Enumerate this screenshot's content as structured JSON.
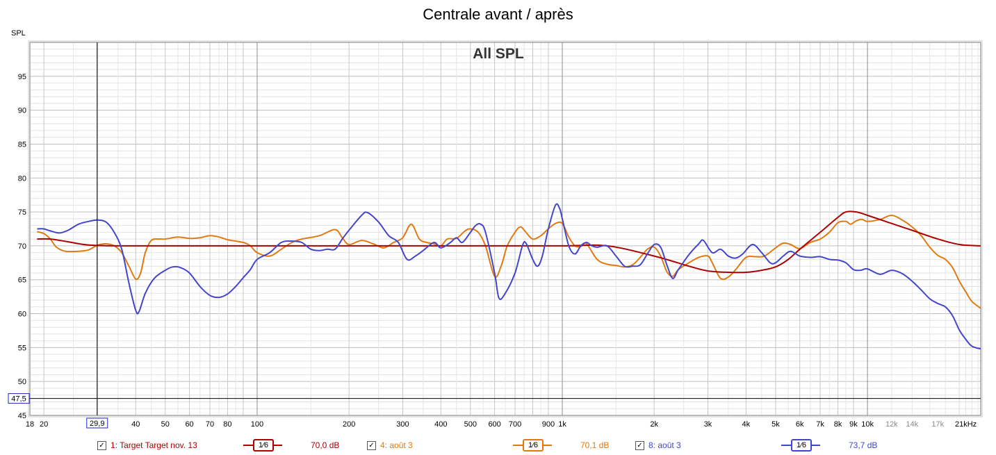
{
  "chart_data": {
    "type": "line",
    "title": "Centrale avant / après",
    "inner_label": "All SPL",
    "ylabel": "SPL",
    "xlabel": "",
    "x_scale": "log",
    "xlim": [
      18,
      23500
    ],
    "ylim": [
      45,
      100
    ],
    "grid": true,
    "y_ticks": [
      45,
      50,
      55,
      60,
      65,
      70,
      75,
      80,
      85,
      90,
      95
    ],
    "x_ticks": [
      {
        "value": 18,
        "label": "18",
        "light": false
      },
      {
        "value": 20,
        "label": "20",
        "light": false
      },
      {
        "value": 40,
        "label": "40",
        "light": false
      },
      {
        "value": 50,
        "label": "50",
        "light": false
      },
      {
        "value": 60,
        "label": "60",
        "light": false
      },
      {
        "value": 70,
        "label": "70",
        "light": false
      },
      {
        "value": 80,
        "label": "80",
        "light": false
      },
      {
        "value": 100,
        "label": "100",
        "light": false
      },
      {
        "value": 200,
        "label": "200",
        "light": false
      },
      {
        "value": 300,
        "label": "300",
        "light": false
      },
      {
        "value": 400,
        "label": "400",
        "light": false
      },
      {
        "value": 500,
        "label": "500",
        "light": false
      },
      {
        "value": 600,
        "label": "600",
        "light": false
      },
      {
        "value": 700,
        "label": "700",
        "light": false
      },
      {
        "value": 900,
        "label": "900",
        "light": false
      },
      {
        "value": 1000,
        "label": "1k",
        "light": false
      },
      {
        "value": 2000,
        "label": "2k",
        "light": false
      },
      {
        "value": 3000,
        "label": "3k",
        "light": false
      },
      {
        "value": 4000,
        "label": "4k",
        "light": false
      },
      {
        "value": 5000,
        "label": "5k",
        "light": false
      },
      {
        "value": 6000,
        "label": "6k",
        "light": false
      },
      {
        "value": 7000,
        "label": "7k",
        "light": false
      },
      {
        "value": 8000,
        "label": "8k",
        "light": false
      },
      {
        "value": 9000,
        "label": "9k",
        "light": false
      },
      {
        "value": 10000,
        "label": "10k",
        "light": false
      },
      {
        "value": 12000,
        "label": "12k",
        "light": true
      },
      {
        "value": 14000,
        "label": "14k",
        "light": true
      },
      {
        "value": 17000,
        "label": "17k",
        "light": true
      },
      {
        "value": 21000,
        "label": "21kHz",
        "light": false
      }
    ],
    "cursor": {
      "x": 29.9,
      "x_label": "29,9",
      "y": 47.5,
      "y_label": "47,5"
    },
    "series": [
      {
        "name": "1: Target Target nov. 13",
        "color": "#aa0000",
        "smoothing": "1⁄6",
        "level": "70,0 dB",
        "points": [
          [
            19,
            71
          ],
          [
            21,
            71
          ],
          [
            24,
            70.6
          ],
          [
            27,
            70.2
          ],
          [
            30,
            70.05
          ],
          [
            35,
            70
          ],
          [
            50,
            70
          ],
          [
            100,
            70
          ],
          [
            500,
            70
          ],
          [
            1000,
            70
          ],
          [
            1400,
            70
          ],
          [
            2000,
            68.5
          ],
          [
            2600,
            67
          ],
          [
            3000,
            66.3
          ],
          [
            3500,
            66.1
          ],
          [
            4000,
            66.1
          ],
          [
            4500,
            66.4
          ],
          [
            5000,
            66.9
          ],
          [
            5500,
            68
          ],
          [
            6000,
            69.5
          ],
          [
            7000,
            72
          ],
          [
            8000,
            74.2
          ],
          [
            8500,
            75
          ],
          [
            9200,
            75
          ],
          [
            10000,
            74.5
          ],
          [
            12000,
            73.3
          ],
          [
            14000,
            72.3
          ],
          [
            17000,
            71
          ],
          [
            20000,
            70.2
          ],
          [
            23500,
            70
          ]
        ]
      },
      {
        "name": "4: août 3",
        "color": "#e07a10",
        "smoothing": "1⁄6",
        "level": "70,1 dB",
        "points": [
          [
            19,
            72.1
          ],
          [
            20,
            71.8
          ],
          [
            21,
            71
          ],
          [
            22,
            69.8
          ],
          [
            23.5,
            69.2
          ],
          [
            26,
            69.2
          ],
          [
            28,
            69.4
          ],
          [
            30,
            70.1
          ],
          [
            32,
            70.3
          ],
          [
            34,
            70
          ],
          [
            36,
            69
          ],
          [
            38,
            67
          ],
          [
            40,
            65.1
          ],
          [
            41.5,
            66
          ],
          [
            43,
            69
          ],
          [
            45,
            70.8
          ],
          [
            48,
            71
          ],
          [
            50,
            71
          ],
          [
            55,
            71.3
          ],
          [
            60,
            71.1
          ],
          [
            65,
            71.2
          ],
          [
            70,
            71.5
          ],
          [
            75,
            71.3
          ],
          [
            80,
            70.9
          ],
          [
            90,
            70.5
          ],
          [
            95,
            70
          ],
          [
            100,
            69
          ],
          [
            110,
            68.5
          ],
          [
            120,
            69.5
          ],
          [
            130,
            70.5
          ],
          [
            140,
            71
          ],
          [
            160,
            71.5
          ],
          [
            180,
            72.4
          ],
          [
            190,
            71.2
          ],
          [
            200,
            70.2
          ],
          [
            220,
            70.8
          ],
          [
            240,
            70.3
          ],
          [
            260,
            69.7
          ],
          [
            280,
            70.5
          ],
          [
            300,
            71.2
          ],
          [
            320,
            73.2
          ],
          [
            340,
            71
          ],
          [
            360,
            70.5
          ],
          [
            380,
            70.3
          ],
          [
            400,
            70
          ],
          [
            420,
            71
          ],
          [
            450,
            71.1
          ],
          [
            480,
            72.2
          ],
          [
            500,
            72.5
          ],
          [
            530,
            72
          ],
          [
            560,
            70
          ],
          [
            600,
            65.5
          ],
          [
            630,
            67
          ],
          [
            660,
            70
          ],
          [
            700,
            72
          ],
          [
            730,
            72.8
          ],
          [
            760,
            72
          ],
          [
            800,
            71
          ],
          [
            850,
            71.5
          ],
          [
            900,
            72.5
          ],
          [
            950,
            73.3
          ],
          [
            1000,
            73.3
          ],
          [
            1050,
            71.3
          ],
          [
            1100,
            70
          ],
          [
            1150,
            69.9
          ],
          [
            1200,
            70.3
          ],
          [
            1300,
            68
          ],
          [
            1400,
            67.3
          ],
          [
            1500,
            67.1
          ],
          [
            1600,
            66.9
          ],
          [
            1700,
            67.2
          ],
          [
            1800,
            68.3
          ],
          [
            1900,
            69.5
          ],
          [
            2000,
            69.8
          ],
          [
            2100,
            68.5
          ],
          [
            2200,
            66.2
          ],
          [
            2300,
            65.5
          ],
          [
            2400,
            66.5
          ],
          [
            2600,
            67.5
          ],
          [
            2800,
            68.3
          ],
          [
            3000,
            68.5
          ],
          [
            3100,
            67.5
          ],
          [
            3300,
            65.2
          ],
          [
            3500,
            65.4
          ],
          [
            3700,
            66.5
          ],
          [
            4000,
            68.3
          ],
          [
            4300,
            68.4
          ],
          [
            4600,
            68.5
          ],
          [
            5000,
            69.7
          ],
          [
            5300,
            70.4
          ],
          [
            5600,
            70.2
          ],
          [
            6000,
            69.6
          ],
          [
            6500,
            70.5
          ],
          [
            7000,
            71
          ],
          [
            7500,
            72
          ],
          [
            8000,
            73.4
          ],
          [
            8500,
            73.6
          ],
          [
            8800,
            73.2
          ],
          [
            9200,
            73.7
          ],
          [
            9600,
            73.9
          ],
          [
            10000,
            73.6
          ],
          [
            11000,
            73.9
          ],
          [
            12000,
            74.5
          ],
          [
            13000,
            73.8
          ],
          [
            14000,
            72.8
          ],
          [
            15000,
            71.5
          ],
          [
            16000,
            69.8
          ],
          [
            17000,
            68.6
          ],
          [
            18000,
            68
          ],
          [
            19000,
            66.8
          ],
          [
            20000,
            64.8
          ],
          [
            21000,
            63.2
          ],
          [
            22000,
            61.8
          ],
          [
            23500,
            60.8
          ]
        ]
      },
      {
        "name": "8: août 3",
        "color": "#4444cc",
        "smoothing": "1⁄6",
        "level": "73,7 dB",
        "points": [
          [
            19,
            72.5
          ],
          [
            20,
            72.5
          ],
          [
            21,
            72.2
          ],
          [
            22.5,
            71.9
          ],
          [
            24,
            72.3
          ],
          [
            26,
            73.2
          ],
          [
            28,
            73.6
          ],
          [
            30,
            73.8
          ],
          [
            32,
            73.5
          ],
          [
            34,
            72
          ],
          [
            36,
            69.5
          ],
          [
            38,
            64.5
          ],
          [
            40,
            60.5
          ],
          [
            41,
            60.3
          ],
          [
            43,
            63
          ],
          [
            46,
            65.2
          ],
          [
            50,
            66.4
          ],
          [
            53,
            66.9
          ],
          [
            56,
            66.8
          ],
          [
            60,
            66
          ],
          [
            65,
            64
          ],
          [
            70,
            62.7
          ],
          [
            75,
            62.4
          ],
          [
            80,
            62.9
          ],
          [
            85,
            64
          ],
          [
            90,
            65.3
          ],
          [
            95,
            66.5
          ],
          [
            100,
            68
          ],
          [
            110,
            69
          ],
          [
            120,
            70.5
          ],
          [
            130,
            70.7
          ],
          [
            140,
            70.5
          ],
          [
            150,
            69.5
          ],
          [
            160,
            69.3
          ],
          [
            170,
            69.5
          ],
          [
            180,
            69.5
          ],
          [
            190,
            71
          ],
          [
            200,
            72.3
          ],
          [
            220,
            74.5
          ],
          [
            230,
            74.9
          ],
          [
            250,
            73.5
          ],
          [
            270,
            71.5
          ],
          [
            290,
            70.5
          ],
          [
            310,
            68
          ],
          [
            330,
            68.5
          ],
          [
            350,
            69.3
          ],
          [
            380,
            70.5
          ],
          [
            400,
            69.7
          ],
          [
            430,
            70.5
          ],
          [
            450,
            71.2
          ],
          [
            470,
            70.5
          ],
          [
            500,
            72
          ],
          [
            520,
            73
          ],
          [
            540,
            73.2
          ],
          [
            560,
            72
          ],
          [
            600,
            66
          ],
          [
            620,
            62.3
          ],
          [
            650,
            63
          ],
          [
            700,
            66
          ],
          [
            740,
            70
          ],
          [
            760,
            70.4
          ],
          [
            800,
            68
          ],
          [
            830,
            67
          ],
          [
            860,
            68.5
          ],
          [
            900,
            72.5
          ],
          [
            950,
            76
          ],
          [
            980,
            75.5
          ],
          [
            1000,
            74
          ],
          [
            1050,
            70
          ],
          [
            1100,
            68.8
          ],
          [
            1150,
            70
          ],
          [
            1200,
            70.5
          ],
          [
            1250,
            70
          ],
          [
            1300,
            69.8
          ],
          [
            1400,
            70
          ],
          [
            1500,
            68.5
          ],
          [
            1600,
            67
          ],
          [
            1700,
            67
          ],
          [
            1800,
            67.2
          ],
          [
            1900,
            68.8
          ],
          [
            2000,
            70.2
          ],
          [
            2100,
            69.8
          ],
          [
            2200,
            67.2
          ],
          [
            2300,
            65.2
          ],
          [
            2400,
            66.5
          ],
          [
            2600,
            68.7
          ],
          [
            2800,
            70.3
          ],
          [
            2900,
            70.8
          ],
          [
            3100,
            69
          ],
          [
            3300,
            69.5
          ],
          [
            3500,
            68.5
          ],
          [
            3700,
            68.2
          ],
          [
            3900,
            68.8
          ],
          [
            4200,
            70.2
          ],
          [
            4500,
            69
          ],
          [
            4800,
            67.5
          ],
          [
            5000,
            67.5
          ],
          [
            5300,
            68.5
          ],
          [
            5600,
            69.2
          ],
          [
            6000,
            68.5
          ],
          [
            6500,
            68.3
          ],
          [
            7000,
            68.4
          ],
          [
            7500,
            68
          ],
          [
            8000,
            67.9
          ],
          [
            8500,
            67.5
          ],
          [
            9000,
            66.5
          ],
          [
            9500,
            66.4
          ],
          [
            10000,
            66.6
          ],
          [
            11000,
            65.8
          ],
          [
            12000,
            66.4
          ],
          [
            13000,
            65.9
          ],
          [
            14000,
            64.8
          ],
          [
            15000,
            63.5
          ],
          [
            16000,
            62.2
          ],
          [
            17000,
            61.5
          ],
          [
            18000,
            61
          ],
          [
            19000,
            59.7
          ],
          [
            20000,
            57.6
          ],
          [
            21000,
            56.2
          ],
          [
            22000,
            55.2
          ],
          [
            23500,
            54.8
          ]
        ]
      }
    ]
  }
}
